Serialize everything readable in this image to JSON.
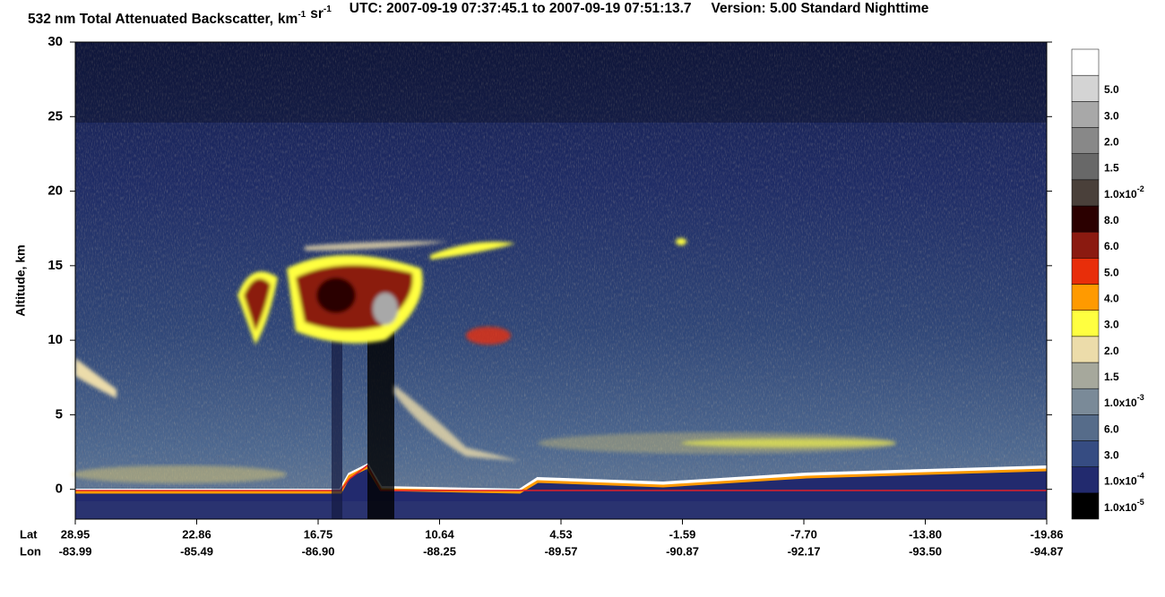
{
  "chart_data": {
    "type": "heatmap",
    "title": "532 nm Total Attenuated Backscatter,",
    "title_units": [
      {
        "base": "km",
        "exp": "-1"
      },
      {
        "base": "sr",
        "exp": "-1"
      }
    ],
    "subtitle": "UTC:  2007-09-19 07:37:45.1  to  2007-09-19 07:51:13.7",
    "version": "Version: 5.00  Standard  Nighttime",
    "ylabel": "Altitude, km",
    "ylim": [
      -2,
      30
    ],
    "yticks": [
      0,
      5,
      10,
      15,
      20,
      25,
      30
    ],
    "x_rows": [
      {
        "name": "Lat",
        "labels": [
          "28.95",
          "22.86",
          "16.75",
          "10.64",
          "4.53",
          "-1.59",
          "-7.70",
          "-13.80",
          "-19.86"
        ]
      },
      {
        "name": "Lon",
        "labels": [
          "-83.99",
          "-85.49",
          "-86.90",
          "-88.25",
          "-89.57",
          "-90.87",
          "-92.17",
          "-93.50",
          "-94.87"
        ]
      }
    ],
    "colorbar": {
      "colors": [
        "#000000",
        "#222a6e",
        "#364c82",
        "#566c8a",
        "#7a8a98",
        "#a6a89c",
        "#ecdcaa",
        "#ffff40",
        "#ff9a00",
        "#e82e0a",
        "#8b1a10",
        "#2b0000",
        "#4a403a",
        "#686868",
        "#888888",
        "#a8a8a8",
        "#d4d4d4",
        "#ffffff"
      ],
      "labels": [
        {
          "text": "1.0x10",
          "sup": "-5"
        },
        {
          "text": "1.0x10",
          "sup": "-4"
        },
        {
          "text": "3.0"
        },
        {
          "text": "6.0"
        },
        {
          "text": "1.0x10",
          "sup": "-3"
        },
        {
          "text": "1.5"
        },
        {
          "text": "2.0"
        },
        {
          "text": "3.0"
        },
        {
          "text": "4.0"
        },
        {
          "text": "5.0"
        },
        {
          "text": "6.0"
        },
        {
          "text": "8.0"
        },
        {
          "text": "1.0x10",
          "sup": "-2"
        },
        {
          "text": "1.5"
        },
        {
          "text": "2.0"
        },
        {
          "text": "3.0"
        },
        {
          "text": "5.0"
        }
      ]
    }
  }
}
